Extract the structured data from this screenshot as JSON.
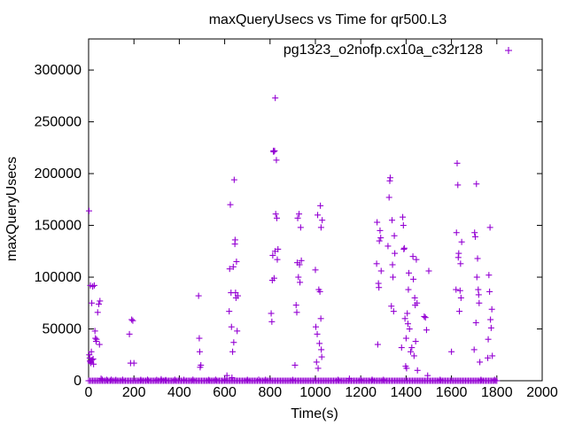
{
  "chart_data": {
    "type": "scatter",
    "title": "maxQueryUsecs vs Time for qr500.L3",
    "xlabel": "Time(s)",
    "ylabel": "maxQueryUsecs",
    "xlim": [
      0,
      2000
    ],
    "ylim": [
      0,
      330000
    ],
    "xticks": [
      "0",
      "200",
      "400",
      "600",
      "800",
      "1000",
      "1200",
      "1400",
      "1600",
      "1800",
      "2000"
    ],
    "yticks": [
      "0",
      "50000",
      "100000",
      "150000",
      "200000",
      "250000",
      "300000"
    ],
    "grid": false,
    "legend_position": "top-right",
    "series": [
      {
        "name": "pg1323_o2nofp.cx10a_c32r128",
        "color": "#9400d3",
        "points": [
          [
            2,
            164000
          ],
          [
            3,
            25000
          ],
          [
            5,
            22000
          ],
          [
            6,
            19000
          ],
          [
            8,
            92000
          ],
          [
            9,
            18000
          ],
          [
            10,
            17000
          ],
          [
            12,
            28000
          ],
          [
            14,
            75000
          ],
          [
            15,
            20000
          ],
          [
            18,
            91000
          ],
          [
            20,
            21000
          ],
          [
            22,
            16000
          ],
          [
            25,
            92000
          ],
          [
            28,
            48000
          ],
          [
            30,
            41000
          ],
          [
            33,
            38000
          ],
          [
            35,
            40000
          ],
          [
            40,
            66000
          ],
          [
            45,
            74000
          ],
          [
            48,
            35000
          ],
          [
            50,
            77000
          ],
          [
            55,
            2000
          ],
          [
            60,
            1000
          ],
          [
            80,
            900
          ],
          [
            100,
            1000
          ],
          [
            120,
            800
          ],
          [
            150,
            1000
          ],
          [
            180,
            45000
          ],
          [
            185,
            17000
          ],
          [
            190,
            59000
          ],
          [
            195,
            58000
          ],
          [
            200,
            17000
          ],
          [
            230,
            900
          ],
          [
            260,
            1000
          ],
          [
            300,
            800
          ],
          [
            320,
            1500
          ],
          [
            340,
            700
          ],
          [
            380,
            1000
          ],
          [
            420,
            900
          ],
          [
            460,
            1000
          ],
          [
            485,
            82000
          ],
          [
            488,
            41000
          ],
          [
            490,
            28000
          ],
          [
            492,
            13000
          ],
          [
            495,
            15000
          ],
          [
            530,
            800
          ],
          [
            560,
            1000
          ],
          [
            600,
            900
          ],
          [
            610,
            5000
          ],
          [
            620,
            67000
          ],
          [
            622,
            108000
          ],
          [
            625,
            170000
          ],
          [
            628,
            85000
          ],
          [
            630,
            52000
          ],
          [
            632,
            3000
          ],
          [
            635,
            28000
          ],
          [
            638,
            110000
          ],
          [
            640,
            37000
          ],
          [
            642,
            194000
          ],
          [
            645,
            132000
          ],
          [
            646,
            136000
          ],
          [
            648,
            85000
          ],
          [
            650,
            80000
          ],
          [
            652,
            115000
          ],
          [
            655,
            48000
          ],
          [
            658,
            82000
          ],
          [
            700,
            900
          ],
          [
            750,
            1000
          ],
          [
            780,
            900
          ],
          [
            805,
            65000
          ],
          [
            808,
            57000
          ],
          [
            810,
            97000
          ],
          [
            812,
            121000
          ],
          [
            815,
            222000
          ],
          [
            816,
            221000
          ],
          [
            818,
            99000
          ],
          [
            820,
            222000
          ],
          [
            822,
            125000
          ],
          [
            823,
            273000
          ],
          [
            825,
            161000
          ],
          [
            828,
            213000
          ],
          [
            830,
            157000
          ],
          [
            832,
            117000
          ],
          [
            835,
            127000
          ],
          [
            900,
            800
          ],
          [
            910,
            15000
          ],
          [
            915,
            73000
          ],
          [
            918,
            66000
          ],
          [
            920,
            114000
          ],
          [
            922,
            157000
          ],
          [
            925,
            100000
          ],
          [
            928,
            161000
          ],
          [
            930,
            112000
          ],
          [
            932,
            95000
          ],
          [
            935,
            148000
          ],
          [
            938,
            116000
          ],
          [
            1000,
            107000
          ],
          [
            1002,
            52000
          ],
          [
            1005,
            18000
          ],
          [
            1008,
            45000
          ],
          [
            1010,
            160000
          ],
          [
            1012,
            12000
          ],
          [
            1015,
            88000
          ],
          [
            1018,
            36000
          ],
          [
            1020,
            86000
          ],
          [
            1022,
            169000
          ],
          [
            1024,
            60000
          ],
          [
            1025,
            148000
          ],
          [
            1026,
            30000
          ],
          [
            1028,
            23000
          ],
          [
            1030,
            155000
          ],
          [
            1100,
            900
          ],
          [
            1150,
            2000
          ],
          [
            1200,
            900
          ],
          [
            1250,
            1000
          ],
          [
            1270,
            113000
          ],
          [
            1272,
            153000
          ],
          [
            1275,
            35000
          ],
          [
            1278,
            94000
          ],
          [
            1280,
            90000
          ],
          [
            1282,
            135000
          ],
          [
            1285,
            145000
          ],
          [
            1288,
            138000
          ],
          [
            1290,
            106000
          ],
          [
            1300,
            900
          ],
          [
            1320,
            130000
          ],
          [
            1325,
            177000
          ],
          [
            1328,
            193000
          ],
          [
            1330,
            196000
          ],
          [
            1335,
            72000
          ],
          [
            1338,
            155000
          ],
          [
            1340,
            112000
          ],
          [
            1342,
            100000
          ],
          [
            1345,
            67000
          ],
          [
            1348,
            140000
          ],
          [
            1350,
            123000
          ],
          [
            1380,
            32000
          ],
          [
            1385,
            158000
          ],
          [
            1388,
            150000
          ],
          [
            1390,
            127000
          ],
          [
            1392,
            128000
          ],
          [
            1395,
            60000
          ],
          [
            1398,
            14000
          ],
          [
            1400,
            41000
          ],
          [
            1402,
            12000
          ],
          [
            1405,
            65000
          ],
          [
            1408,
            55000
          ],
          [
            1410,
            88000
          ],
          [
            1412,
            104000
          ],
          [
            1415,
            50000
          ],
          [
            1420,
            28000
          ],
          [
            1425,
            32000
          ],
          [
            1430,
            120000
          ],
          [
            1432,
            98000
          ],
          [
            1435,
            24000
          ],
          [
            1438,
            80000
          ],
          [
            1440,
            73000
          ],
          [
            1442,
            38000
          ],
          [
            1445,
            117000
          ],
          [
            1448,
            75000
          ],
          [
            1450,
            10000
          ],
          [
            1480,
            62000
          ],
          [
            1485,
            61000
          ],
          [
            1490,
            49000
          ],
          [
            1495,
            5000
          ],
          [
            1500,
            106000
          ],
          [
            1550,
            900
          ],
          [
            1600,
            28000
          ],
          [
            1620,
            88000
          ],
          [
            1622,
            143000
          ],
          [
            1625,
            210000
          ],
          [
            1628,
            189000
          ],
          [
            1630,
            119000
          ],
          [
            1632,
            123000
          ],
          [
            1635,
            67000
          ],
          [
            1638,
            87000
          ],
          [
            1640,
            113000
          ],
          [
            1642,
            80000
          ],
          [
            1645,
            134000
          ],
          [
            1700,
            30000
          ],
          [
            1702,
            143000
          ],
          [
            1705,
            139000
          ],
          [
            1708,
            56000
          ],
          [
            1710,
            190000
          ],
          [
            1712,
            100000
          ],
          [
            1715,
            118000
          ],
          [
            1718,
            88000
          ],
          [
            1720,
            83000
          ],
          [
            1722,
            75000
          ],
          [
            1725,
            18000
          ],
          [
            1730,
            900
          ],
          [
            1760,
            22000
          ],
          [
            1762,
            40000
          ],
          [
            1765,
            102000
          ],
          [
            1768,
            86000
          ],
          [
            1770,
            148000
          ],
          [
            1772,
            59000
          ],
          [
            1775,
            51000
          ],
          [
            1778,
            69000
          ],
          [
            1780,
            24000
          ],
          [
            1790,
            900
          ]
        ]
      }
    ]
  }
}
